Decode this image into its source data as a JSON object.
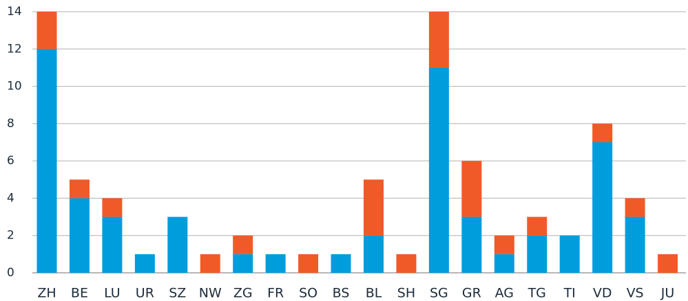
{
  "chart_data": {
    "type": "bar",
    "stacked": true,
    "categories": [
      "ZH",
      "BE",
      "LU",
      "UR",
      "SZ",
      "NW",
      "ZG",
      "FR",
      "SO",
      "BS",
      "BL",
      "SH",
      "SG",
      "GR",
      "AG",
      "TG",
      "TI",
      "VD",
      "VS",
      "JU"
    ],
    "series": [
      {
        "values": [
          12,
          4,
          3,
          1,
          3,
          0,
          1,
          1,
          0,
          1,
          2,
          0,
          11,
          3,
          1,
          2,
          2,
          7,
          3,
          0
        ],
        "color": "#009ddc"
      },
      {
        "values": [
          2,
          1,
          1,
          0,
          0,
          1,
          1,
          0,
          1,
          0,
          3,
          1,
          3,
          3,
          1,
          1,
          0,
          1,
          1,
          1
        ],
        "color": "#f05a28"
      }
    ],
    "ylim": [
      0,
      14
    ],
    "yticks": [
      0,
      2,
      4,
      6,
      8,
      10,
      12,
      14
    ],
    "grid": true,
    "legend": "none",
    "title": "",
    "xlabel": "",
    "ylabel": ""
  }
}
